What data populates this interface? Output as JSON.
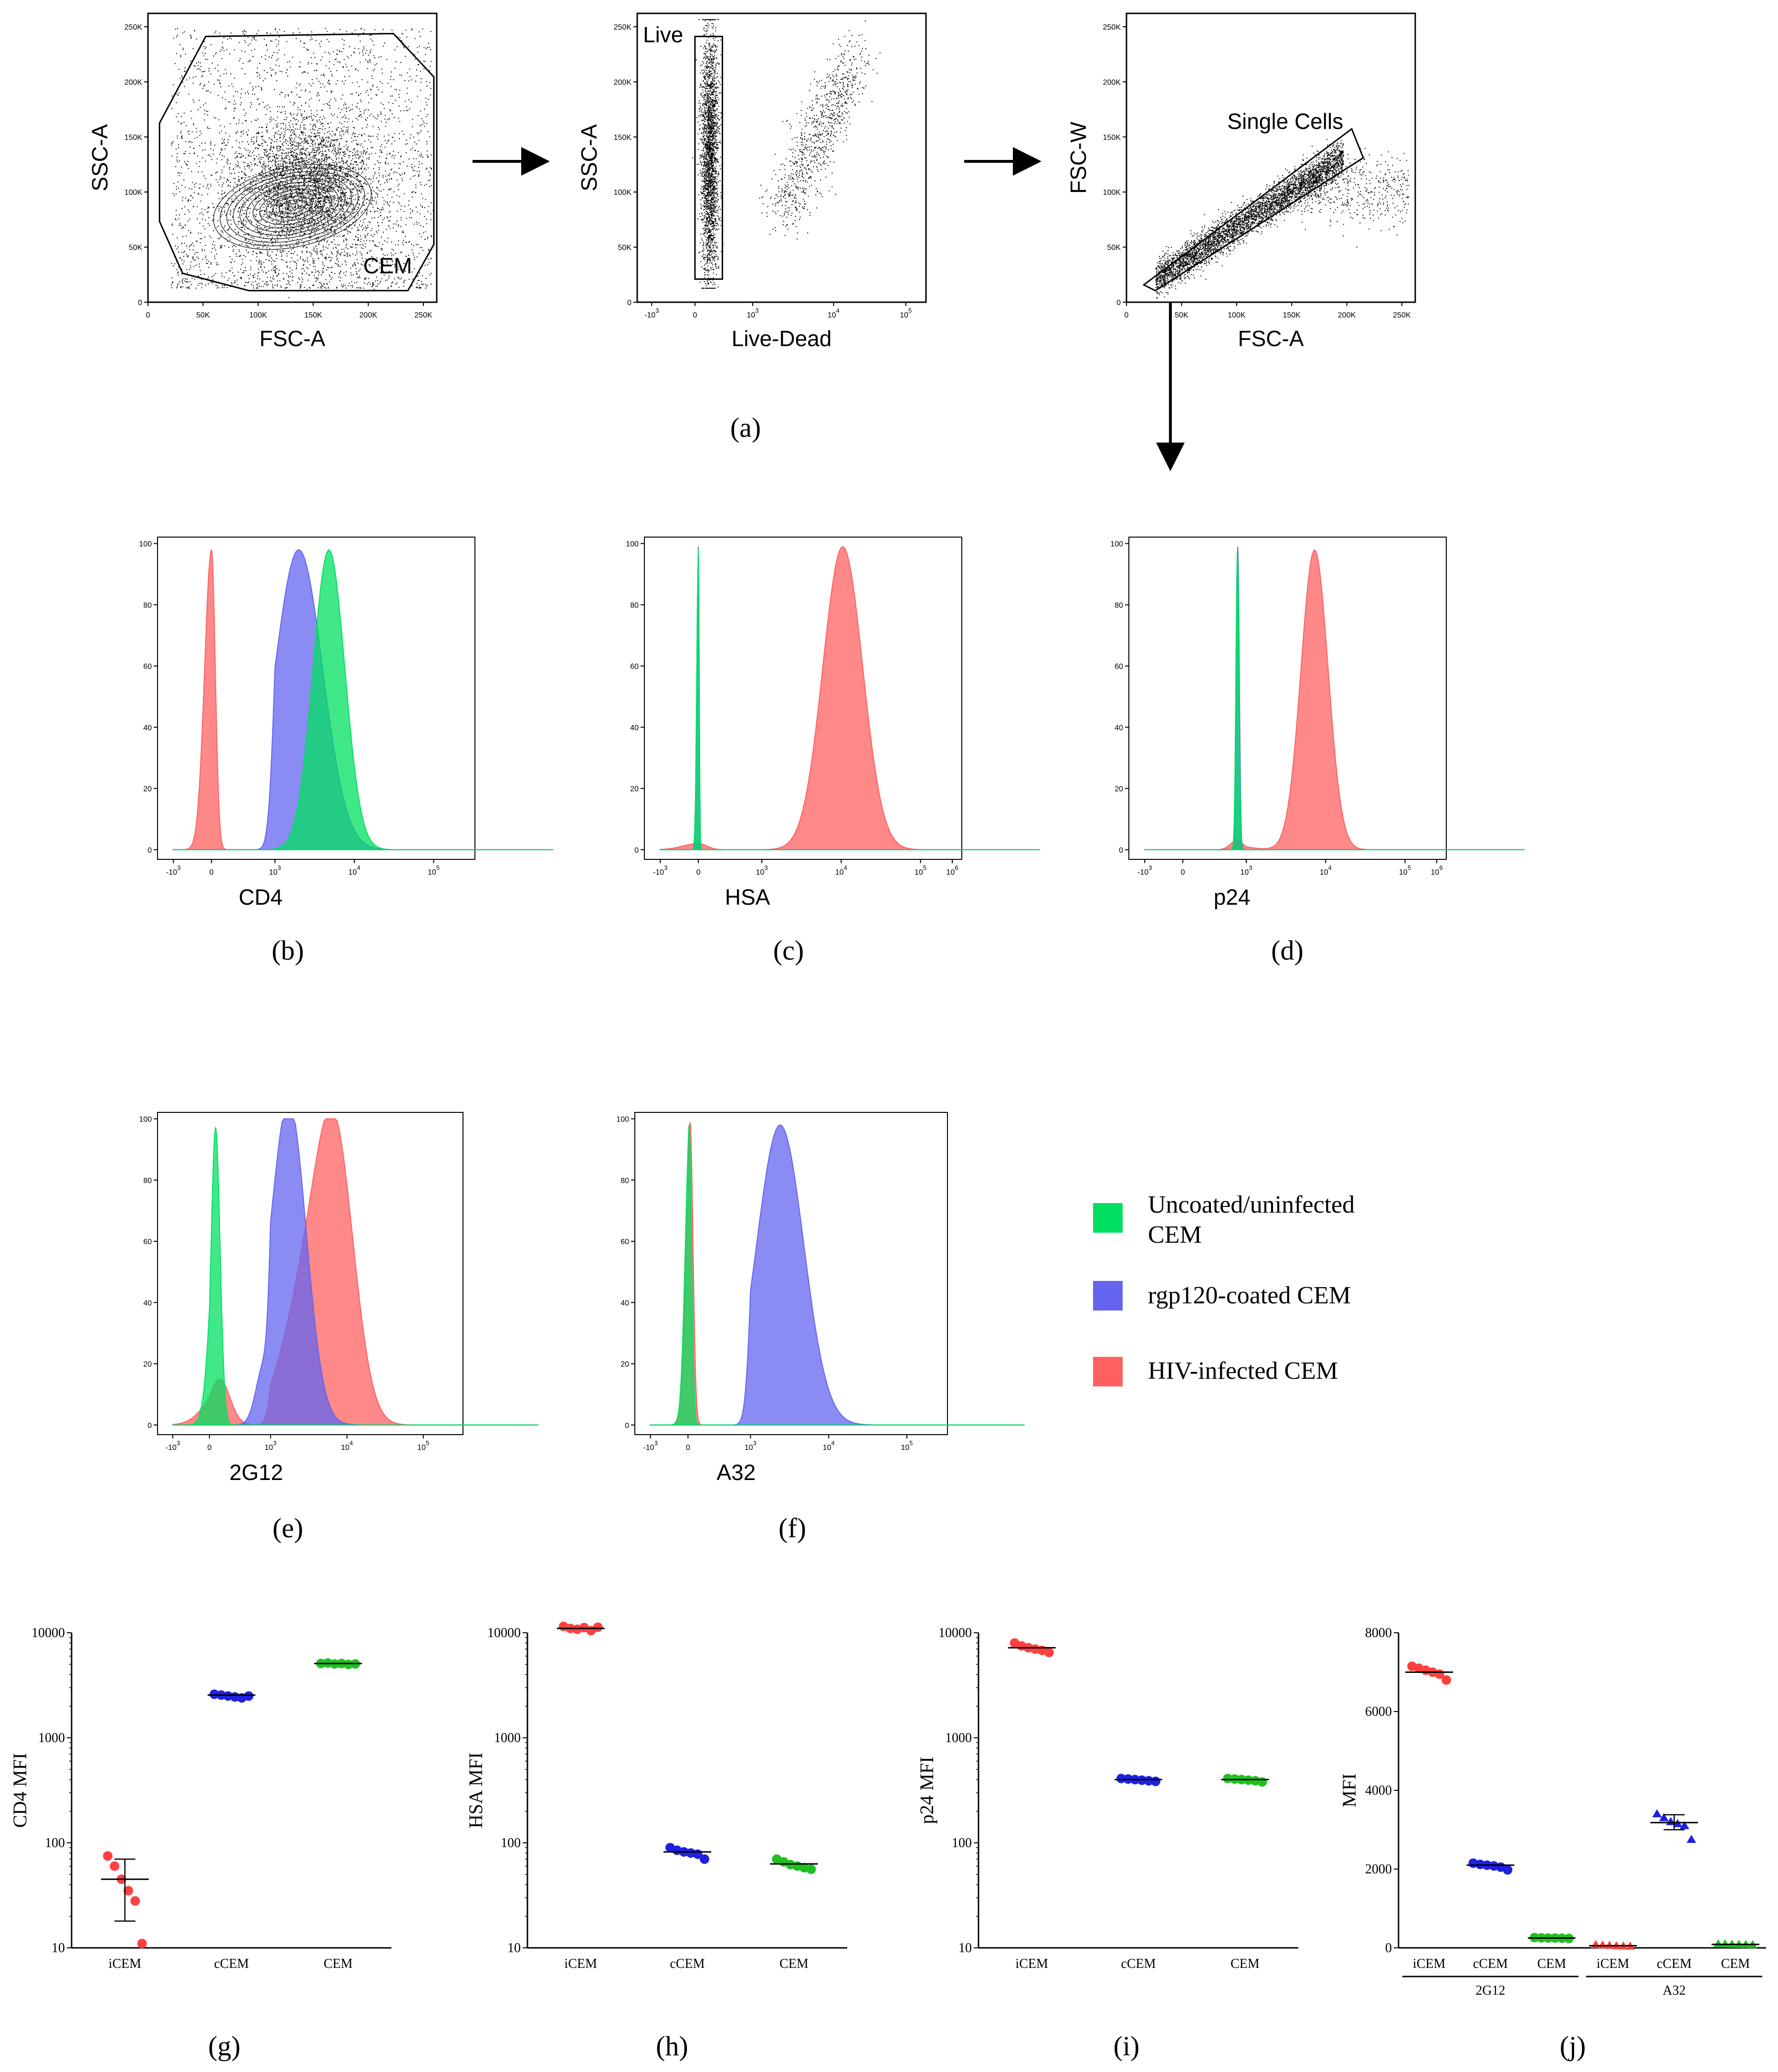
{
  "panel_labels": [
    "(a)",
    "(b)",
    "(c)",
    "(d)",
    "(e)",
    "(f)",
    "(g)",
    "(h)",
    "(i)",
    "(j)"
  ],
  "legend": [
    {
      "label_lines": [
        "Uncoated/uninfected",
        "CEM"
      ],
      "color": "#00e060"
    },
    {
      "label_lines": [
        "rgp120-coated CEM"
      ],
      "color": "#6464f0"
    },
    {
      "label_lines": [
        "HIV-infected CEM"
      ],
      "color": "#ff6060"
    }
  ],
  "chart_data": [
    {
      "id": "a1",
      "type": "scatter",
      "xlabel": "FSC-A",
      "ylabel": "SSC-A",
      "x_ticks": [
        "0",
        "50K",
        "100K",
        "150K",
        "200K",
        "250K"
      ],
      "y_ticks": [
        "0",
        "50K",
        "100K",
        "150K",
        "200K",
        "250K"
      ],
      "xlim": [
        0,
        262144
      ],
      "ylim": [
        0,
        262144
      ],
      "gate_label": "CEM"
    },
    {
      "id": "a2",
      "type": "scatter",
      "xlabel": "Live-Dead",
      "ylabel": "SSC-A",
      "x_ticks": [
        "-10^3",
        "0",
        "10^3",
        "10^4",
        "10^5"
      ],
      "y_ticks": [
        "0",
        "50K",
        "100K",
        "150K",
        "200K",
        "250K"
      ],
      "x_scale": "biexponential",
      "ylim": [
        0,
        262144
      ],
      "gate_label": "Live"
    },
    {
      "id": "a3",
      "type": "scatter",
      "xlabel": "FSC-A",
      "ylabel": "FSC-W",
      "x_ticks": [
        "0",
        "50K",
        "100K",
        "150K",
        "200K",
        "250K"
      ],
      "y_ticks": [
        "0",
        "50K",
        "100K",
        "150K",
        "200K",
        "250K"
      ],
      "xlim": [
        0,
        262144
      ],
      "ylim": [
        0,
        262144
      ],
      "gate_label": "Single Cells"
    },
    {
      "id": "b",
      "type": "area",
      "xlabel": "CD4",
      "x_ticks": [
        "-10^3",
        "0",
        "10^3",
        "10^4",
        "10^5"
      ],
      "y_ticks": [
        "0",
        "20",
        "40",
        "60",
        "80",
        "100"
      ],
      "ylim": [
        0,
        100
      ],
      "series": [
        {
          "color": "#ff6060",
          "peaks": [
            {
              "x": 0,
              "height": 98,
              "width": 0.18
            }
          ]
        },
        {
          "color": "#6464f0",
          "peaks": [
            {
              "x": 3.3,
              "height": 98,
              "width": 0.3
            }
          ]
        },
        {
          "color": "#00e060",
          "peaks": [
            {
              "x": 3.68,
              "height": 98,
              "width": 0.2
            }
          ]
        }
      ]
    },
    {
      "id": "c",
      "type": "area",
      "xlabel": "HSA",
      "x_ticks": [
        "-10^3",
        "0",
        "10^3",
        "10^4",
        "10^5",
        "10^6"
      ],
      "y_ticks": [
        "0",
        "20",
        "40",
        "60",
        "80",
        "100"
      ],
      "ylim": [
        0,
        100
      ],
      "series": [
        {
          "color": "#ff6060",
          "peaks": [
            {
              "x": 4.02,
              "height": 99,
              "width": 0.25
            },
            {
              "x": 0,
              "height": 2,
              "width": 0.4
            }
          ]
        },
        {
          "color": "#6464f0",
          "peaks": [
            {
              "x": 0,
              "height": 99,
              "width": 0.04
            }
          ]
        },
        {
          "color": "#00e060",
          "peaks": [
            {
              "x": 0,
              "height": 98,
              "width": 0.04
            }
          ]
        }
      ]
    },
    {
      "id": "d",
      "type": "area",
      "xlabel": "p24",
      "x_ticks": [
        "-10^3",
        "0",
        "10^3",
        "10^4",
        "10^5",
        "10^6"
      ],
      "y_ticks": [
        "0",
        "20",
        "40",
        "60",
        "80",
        "100"
      ],
      "ylim": [
        0,
        100
      ],
      "series": [
        {
          "color": "#ff6060",
          "peaks": [
            {
              "x": 3.86,
              "height": 98,
              "width": 0.17
            },
            {
              "x": 2.55,
              "height": 3,
              "width": 0.3
            }
          ]
        },
        {
          "color": "#6464f0",
          "peaks": [
            {
              "x": 2.6,
              "height": 99,
              "width": 0.07
            }
          ]
        },
        {
          "color": "#00e060",
          "peaks": [
            {
              "x": 2.58,
              "height": 98,
              "width": 0.07
            }
          ]
        }
      ]
    },
    {
      "id": "e",
      "type": "area",
      "xlabel": "2G12",
      "x_ticks": [
        "-10^3",
        "0",
        "10^3",
        "10^4",
        "10^5"
      ],
      "y_ticks": [
        "0",
        "20",
        "40",
        "60",
        "80",
        "100"
      ],
      "ylim": [
        0,
        100
      ],
      "series": [
        {
          "color": "#ff6060",
          "peaks": [
            {
              "x": 3.85,
              "height": 85,
              "width": 0.25
            },
            {
              "x": 3.45,
              "height": 40,
              "width": 0.3
            },
            {
              "x": 0.5,
              "height": 15,
              "width": 0.5
            }
          ]
        },
        {
          "color": "#6464f0",
          "peaks": [
            {
              "x": 3.25,
              "height": 98,
              "width": 0.22
            },
            {
              "x": 2.7,
              "height": 20,
              "width": 0.4
            }
          ]
        },
        {
          "color": "#00e060",
          "peaks": [
            {
              "x": 0.3,
              "height": 97,
              "width": 0.22
            }
          ]
        }
      ]
    },
    {
      "id": "f",
      "type": "area",
      "xlabel": "A32",
      "x_ticks": [
        "-10^3",
        "0",
        "10^3",
        "10^4",
        "10^5"
      ],
      "y_ticks": [
        "0",
        "20",
        "40",
        "60",
        "80",
        "100"
      ],
      "ylim": [
        0,
        100
      ],
      "series": [
        {
          "color": "#ff6060",
          "peaks": [
            {
              "x": 0.1,
              "height": 99,
              "width": 0.14
            }
          ]
        },
        {
          "color": "#6464f0",
          "peaks": [
            {
              "x": 3.38,
              "height": 98,
              "width": 0.3
            }
          ]
        },
        {
          "color": "#00e060",
          "peaks": [
            {
              "x": 0.05,
              "height": 98,
              "width": 0.12
            }
          ]
        }
      ]
    },
    {
      "id": "g",
      "type": "scatter",
      "ylabel": "CD4 MFI",
      "y_scale": "log",
      "ylim": [
        10,
        10000
      ],
      "y_ticks": [
        "10",
        "100",
        "1000",
        "10000"
      ],
      "categories": [
        "iCEM",
        "cCEM",
        "CEM"
      ],
      "groups": [
        {
          "category": "iCEM",
          "color": "#ff4040",
          "values": [
            75,
            60,
            45,
            35,
            28,
            11
          ],
          "mean": 45,
          "sd_low": 18,
          "sd_high": 70
        },
        {
          "category": "cCEM",
          "color": "#2020e0",
          "values": [
            2600,
            2550,
            2500,
            2450,
            2400,
            2500
          ],
          "mean": 2550
        },
        {
          "category": "CEM",
          "color": "#20c020",
          "values": [
            5100,
            5150,
            5050,
            5100,
            5000,
            5050
          ],
          "mean": 5100
        }
      ]
    },
    {
      "id": "h",
      "type": "scatter",
      "ylabel": "HSA MFI",
      "y_scale": "log",
      "ylim": [
        10,
        10000
      ],
      "y_ticks": [
        "10",
        "100",
        "1000",
        "10000"
      ],
      "categories": [
        "iCEM",
        "cCEM",
        "CEM"
      ],
      "groups": [
        {
          "category": "iCEM",
          "color": "#ff4040",
          "values": [
            11500,
            11000,
            10800,
            11200,
            10500,
            11300
          ],
          "mean": 11000
        },
        {
          "category": "cCEM",
          "color": "#2020e0",
          "values": [
            90,
            85,
            82,
            80,
            78,
            70
          ],
          "mean": 82
        },
        {
          "category": "CEM",
          "color": "#20c020",
          "values": [
            70,
            66,
            62,
            60,
            58,
            56
          ],
          "mean": 63
        }
      ]
    },
    {
      "id": "i",
      "type": "scatter",
      "ylabel": "p24 MFI",
      "y_scale": "log",
      "ylim": [
        10,
        10000
      ],
      "y_ticks": [
        "10",
        "100",
        "1000",
        "10000"
      ],
      "categories": [
        "iCEM",
        "cCEM",
        "CEM"
      ],
      "groups": [
        {
          "category": "iCEM",
          "color": "#ff4040",
          "values": [
            8000,
            7500,
            7200,
            7000,
            6800,
            6500
          ],
          "mean": 7200
        },
        {
          "category": "cCEM",
          "color": "#2020e0",
          "values": [
            410,
            405,
            400,
            395,
            390,
            385
          ],
          "mean": 400
        },
        {
          "category": "CEM",
          "color": "#20c020",
          "values": [
            410,
            405,
            400,
            395,
            390,
            380
          ],
          "mean": 400
        }
      ]
    },
    {
      "id": "j",
      "type": "scatter",
      "ylabel": "MFI",
      "ylim": [
        0,
        8000
      ],
      "y_ticks": [
        "0",
        "2000",
        "4000",
        "6000",
        "8000"
      ],
      "categories": [
        "iCEM",
        "cCEM",
        "CEM",
        "iCEM",
        "cCEM",
        "CEM"
      ],
      "group_labels": [
        "2G12",
        "A32"
      ],
      "groups": [
        {
          "category": "iCEM",
          "group": "2G12",
          "color": "#ff4040",
          "marker": "circle",
          "values": [
            7150,
            7100,
            7050,
            7000,
            6950,
            6800
          ],
          "mean": 7000
        },
        {
          "category": "cCEM",
          "group": "2G12",
          "color": "#2020e0",
          "marker": "circle",
          "values": [
            2150,
            2120,
            2100,
            2080,
            2050,
            1980
          ],
          "mean": 2100
        },
        {
          "category": "CEM",
          "group": "2G12",
          "color": "#20c020",
          "marker": "circle",
          "values": [
            260,
            255,
            250,
            250,
            245,
            240
          ],
          "mean": 250
        },
        {
          "category": "iCEM",
          "group": "A32",
          "color": "#ff4040",
          "marker": "triangle",
          "values": [
            80,
            70,
            60,
            50,
            45,
            40
          ],
          "mean": 55
        },
        {
          "category": "cCEM",
          "group": "A32",
          "color": "#2020e0",
          "marker": "triangle",
          "values": [
            3400,
            3300,
            3200,
            3150,
            3100,
            2750
          ],
          "mean": 3180,
          "sd_low": 3000,
          "sd_high": 3380
        },
        {
          "category": "CEM",
          "group": "A32",
          "color": "#20c020",
          "marker": "triangle",
          "values": [
            100,
            95,
            90,
            85,
            80,
            78
          ],
          "mean": 88
        }
      ]
    }
  ]
}
